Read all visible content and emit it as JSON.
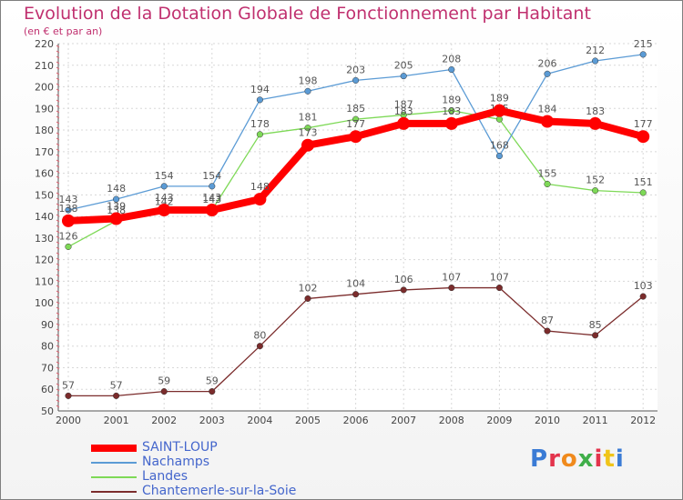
{
  "title": "Evolution de la Dotation Globale de Fonctionnement par Habitant",
  "subtitle": "(en € et par an)",
  "logo": {
    "text": "Proxiti",
    "letters": [
      "P",
      "r",
      "o",
      "x",
      "i",
      "t",
      "i"
    ],
    "colors": [
      "#3a7bd5",
      "#e3344c",
      "#f08a1c",
      "#3fae49",
      "#e3344c",
      "#f0c419",
      "#3a7bd5"
    ]
  },
  "chart_data": {
    "type": "line",
    "title": "Evolution de la Dotation Globale de Fonctionnement par Habitant",
    "subtitle": "(en € et par an)",
    "x": [
      "2000",
      "2001",
      "2002",
      "2003",
      "2004",
      "2005",
      "2006",
      "2007",
      "2008",
      "2009",
      "2010",
      "2011",
      "2012"
    ],
    "ylim": [
      50,
      220
    ],
    "yticks": [
      50,
      60,
      70,
      80,
      90,
      100,
      110,
      120,
      130,
      140,
      150,
      160,
      170,
      180,
      190,
      200,
      210,
      220
    ],
    "grid": true,
    "legend_position": "bottom-left",
    "series": [
      {
        "name": "Nachamps",
        "color": "#5b9bd5",
        "values": [
          143,
          148,
          154,
          154,
          194,
          198,
          203,
          205,
          208,
          168,
          206,
          212,
          215
        ]
      },
      {
        "name": "Landes",
        "color": "#7ed957",
        "values": [
          126,
          138,
          142,
          143,
          178,
          181,
          185,
          187,
          189,
          185,
          155,
          152,
          151
        ]
      },
      {
        "name": "Chantemerle-sur-la-Soie",
        "color": "#7b2c2c",
        "values": [
          57,
          57,
          59,
          59,
          80,
          102,
          104,
          106,
          107,
          107,
          87,
          85,
          103
        ]
      },
      {
        "name": "SAINT-LOUP",
        "color": "#ff0000",
        "values": [
          138,
          139,
          143,
          143,
          148,
          173,
          177,
          183,
          183,
          189,
          184,
          183,
          177
        ]
      }
    ],
    "legend_order": [
      "SAINT-LOUP",
      "Nachamps",
      "Landes",
      "Chantemerle-sur-la-Soie"
    ]
  }
}
